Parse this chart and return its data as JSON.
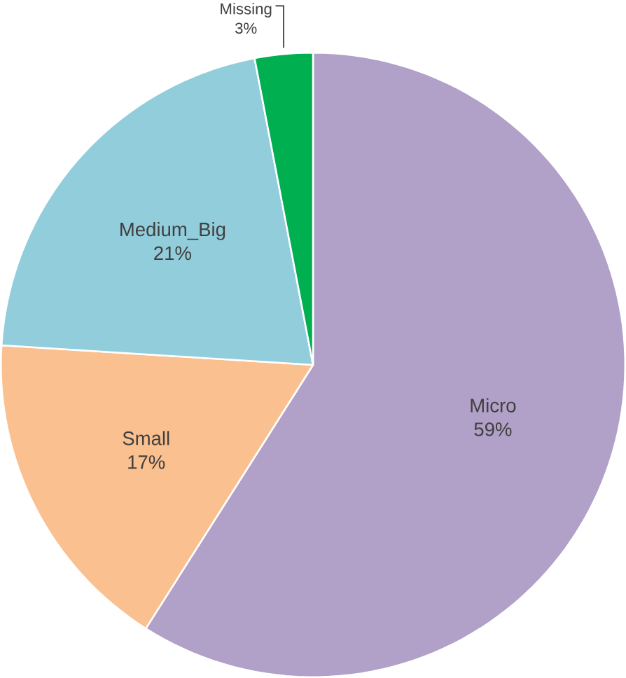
{
  "chart_data": {
    "type": "pie",
    "categories": [
      "Micro",
      "Small",
      "Medium_Big",
      "Missing"
    ],
    "values": [
      59,
      17,
      21,
      3
    ],
    "value_labels": [
      "59%",
      "17%",
      "21%",
      "3%"
    ],
    "colors": [
      "#b1a0c7",
      "#fac090",
      "#92cddc",
      "#00b050"
    ]
  }
}
